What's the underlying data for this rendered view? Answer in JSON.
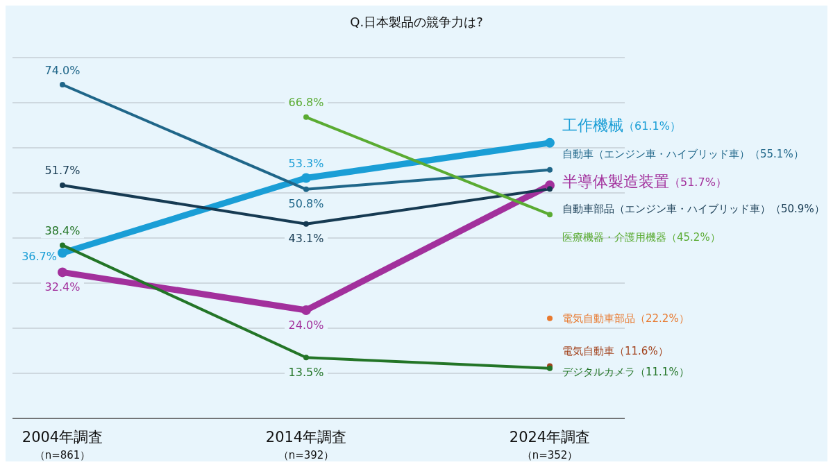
{
  "chart_data": {
    "type": "line",
    "title": "Q.日本製品の競争力は?",
    "categories": [
      "2004年調査（n=861）",
      "2014年調査（n=392）",
      "2024年調査（n=352）"
    ],
    "ylim": [
      0,
      80
    ],
    "yticks": [
      {
        "value": 0,
        "label": null
      },
      {
        "value": 10,
        "label": null
      },
      {
        "value": 20,
        "label": null
      },
      {
        "value": 30,
        "label": null
      },
      {
        "value": 40,
        "label": null
      },
      {
        "value": 50,
        "label": null
      },
      {
        "value": 60,
        "label": null
      },
      {
        "value": 70,
        "label": null
      },
      {
        "value": 80,
        "label": null
      }
    ],
    "grid": "y",
    "marker": "circle",
    "line_style": "solid",
    "series": [
      {
        "color": "#1a9ed6",
        "values": [
          36.7,
          53.3,
          61.1
        ],
        "value_labels": [
          "36.7%",
          "53.3%",
          "工作機械（61.1%）"
        ]
      },
      {
        "color": "#1f6689",
        "values": [
          74.0,
          50.8,
          55.1
        ],
        "value_labels": [
          "74.0%",
          "50.8%",
          "自動車（エンジン車・ハイブリッド車）（55.1%）"
        ]
      },
      {
        "color": "#a2309c",
        "values": [
          32.4,
          24.0,
          51.7
        ],
        "value_labels": [
          "32.4%",
          "24.0%",
          "半導体製造装置（51.7%）"
        ]
      },
      {
        "color": "#163a52",
        "values": [
          51.7,
          43.1,
          50.9
        ],
        "value_labels": [
          "51.7%",
          "43.1%",
          "自動車部品（エンジン車・ハイブリッド車）（50.9%）"
        ]
      },
      {
        "color": "#5aab32",
        "values": [
          null,
          66.8,
          45.2
        ],
        "value_labels": [
          null,
          "66.8%",
          "医療機器・介護用機器（45.2%）"
        ]
      },
      {
        "color": "#e8792e",
        "values": [
          null,
          null,
          22.2
        ],
        "value_labels": [
          null,
          null,
          "電気自動車部品（22.2%）"
        ]
      },
      {
        "color": "#a2421c",
        "values": [
          null,
          null,
          11.6
        ],
        "value_labels": [
          null,
          null,
          "電気自動車（11.6%）"
        ]
      },
      {
        "color": "#237527",
        "values": [
          38.4,
          13.5,
          11.1
        ],
        "value_labels": [
          "38.4%",
          "13.5%",
          "デジタルカメラ（11.1%）"
        ]
      }
    ]
  }
}
